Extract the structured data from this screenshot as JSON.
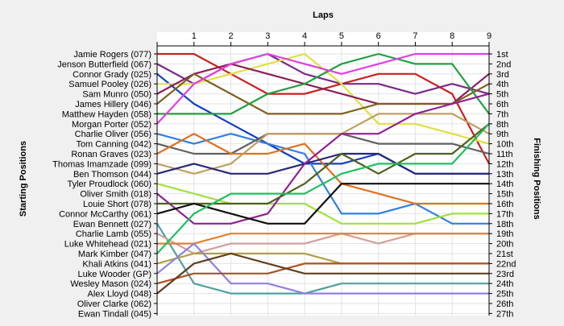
{
  "chart_data": {
    "type": "line",
    "title": "Laps",
    "ylabel_left": "Starting Positions",
    "ylabel_right": "Finishing Positions",
    "x_ticks": [
      "1",
      "2",
      "3",
      "4",
      "5",
      "6",
      "7",
      "8",
      "9"
    ],
    "xlim": [
      0,
      9
    ],
    "ylim": [
      1,
      27
    ],
    "grid": true,
    "starting_labels": [
      "Jamie Rogers (077)",
      "Jenson Butterfield (067)",
      "Connor Grady (025)",
      "Samuel Pooley (026)",
      "Sam Munro (050)",
      "James Hillery (046)",
      "Matthew Hayden (058)",
      "Morgan Porter (052)",
      "Charlie Oliver (056)",
      "Tom Canning (042)",
      "Ronan Graves (023)",
      "Thomas Imamzade (099)",
      "Ben Thomson (044)",
      "Tyler Proudlock (060)",
      "Oliver Smith (018)",
      "Louie Short (078)",
      "Connor McCarthy (061)",
      "Ewan Bennett (027)",
      "Charlie Lamb (055)",
      "Luke Whitehead (021)",
      "Mark Kimber (047)",
      "Khali Atkins (041)",
      "Luke Wooder (GP)",
      "Wesley Mason (024)",
      "Alex Lloyd (048)",
      "Oliver Clarke (062)",
      "Ewan Tindall (045)"
    ],
    "finishing_labels": [
      "1st",
      "2nd",
      "3rd",
      "4th",
      "5th",
      "6th",
      "7th",
      "8th",
      "9th",
      "10th",
      "11th",
      "12th",
      "13th",
      "14th",
      "15th",
      "16th",
      "17th",
      "18th",
      "19th",
      "20th",
      "21st",
      "22nd",
      "23rd",
      "24th",
      "25th",
      "26th",
      "27th"
    ],
    "series": [
      {
        "color": "#cc1f1f",
        "values": [
          1,
          1,
          3,
          5,
          5,
          4,
          3,
          3,
          5,
          12
        ]
      },
      {
        "color": "#7a2a8a",
        "values": [
          2,
          4,
          2,
          1,
          3,
          4,
          4,
          5,
          4,
          5
        ]
      },
      {
        "color": "#1040c0",
        "values": [
          3,
          6,
          8,
          10,
          12,
          12,
          11,
          13,
          13,
          13
        ]
      },
      {
        "color": "#e0e040",
        "values": [
          4,
          4,
          3,
          2,
          1,
          4,
          8,
          8,
          9,
          10
        ]
      },
      {
        "color": "#8a1f5a",
        "values": [
          5,
          3,
          2,
          3,
          4,
          5,
          6,
          6,
          6,
          3
        ]
      },
      {
        "color": "#806020",
        "values": [
          6,
          3,
          5,
          7,
          7,
          7,
          6,
          6,
          6,
          4
        ]
      },
      {
        "color": "#20a040",
        "values": [
          7,
          7,
          7,
          5,
          4,
          2,
          1,
          2,
          2,
          7
        ]
      },
      {
        "color": "#e040e0",
        "values": [
          8,
          4,
          2,
          1,
          2,
          3,
          2,
          1,
          1,
          1
        ]
      },
      {
        "color": "#3080e0",
        "values": [
          9,
          10,
          9,
          10,
          11,
          17,
          17,
          16,
          18,
          18
        ]
      },
      {
        "color": "#606060",
        "values": [
          10,
          11,
          11,
          9,
          9,
          9,
          10,
          10,
          10,
          11
        ]
      },
      {
        "color": "#e07020",
        "values": [
          11,
          9,
          11,
          11,
          10,
          14,
          15,
          16,
          16,
          16
        ]
      },
      {
        "color": "#c0a060",
        "values": [
          12,
          13,
          12,
          9,
          9,
          9,
          7,
          7,
          7,
          9
        ]
      },
      {
        "color": "#282878",
        "values": [
          13,
          12,
          13,
          13,
          12,
          11,
          11,
          13,
          13,
          13
        ]
      },
      {
        "color": "#a0e040",
        "values": [
          14,
          15,
          16,
          16,
          16,
          18,
          18,
          18,
          17,
          17
        ]
      },
      {
        "color": "#902090",
        "values": [
          15,
          18,
          18,
          17,
          12,
          9,
          9,
          7,
          6,
          5
        ]
      },
      {
        "color": "#506020",
        "values": [
          16,
          16,
          16,
          16,
          14,
          11,
          13,
          11,
          11,
          8
        ]
      },
      {
        "color": "#101010",
        "values": [
          17,
          16,
          17,
          18,
          18,
          14,
          14,
          14,
          14,
          14
        ]
      },
      {
        "color": "#50a0a0",
        "values": [
          18,
          24,
          25,
          25,
          25,
          24,
          24,
          24,
          24,
          24
        ]
      },
      {
        "color": "#d0a0a0",
        "values": [
          19,
          21,
          20,
          20,
          20,
          19,
          20,
          19,
          19,
          19
        ]
      },
      {
        "color": "#e08030",
        "values": [
          20,
          20,
          19,
          19,
          19,
          19,
          19,
          19,
          19,
          19
        ]
      },
      {
        "color": "#20c060",
        "values": [
          21,
          17,
          15,
          15,
          15,
          13,
          12,
          12,
          12,
          8
        ]
      },
      {
        "color": "#b0a040",
        "values": [
          22,
          21,
          21,
          21,
          21,
          22,
          22,
          22,
          22,
          22
        ]
      },
      {
        "color": "#9080e0",
        "values": [
          23,
          20,
          24,
          24,
          25,
          25,
          25,
          25,
          25,
          25
        ]
      },
      {
        "color": "#b05020",
        "values": [
          24,
          23,
          23,
          23,
          22,
          22,
          22,
          22,
          22,
          22
        ]
      },
      {
        "color": "#604020",
        "values": [
          25,
          22,
          21,
          22,
          23,
          23,
          23,
          23,
          23,
          23
        ]
      }
    ]
  }
}
